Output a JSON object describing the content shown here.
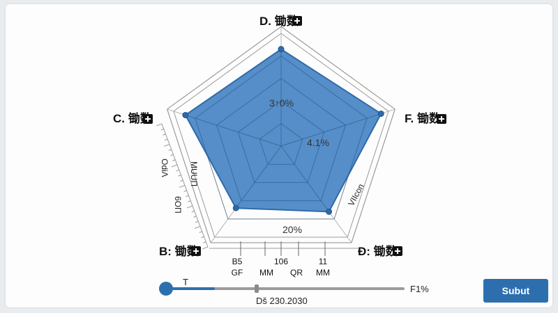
{
  "chart_data": {
    "type": "radar",
    "axes": [
      {
        "label": "D. 锄数"
      },
      {
        "label": "F. 锄数"
      },
      {
        "label": "Đ: 锄数"
      },
      {
        "label": "B: 锄数"
      },
      {
        "label": "C. 锄数"
      }
    ],
    "series": [
      {
        "values": [
          0.86,
          0.93,
          0.72,
          0.68,
          0.89
        ],
        "color": "#3d7ec2"
      }
    ],
    "rings": 5,
    "grid": true,
    "inner_labels": [
      "3↑0%",
      "4.1%",
      "20%"
    ],
    "side_labels": [
      "OdiΛ",
      "MUUΠ",
      "6ΟΠ",
      "VIIcon"
    ],
    "bottom_ticks": [
      {
        "top": "B5",
        "bottom": "GF"
      },
      {
        "top": "",
        "bottom": "MM"
      },
      {
        "top": "106",
        "bottom": ""
      },
      {
        "top": "",
        "bottom": "QR"
      },
      {
        "top": "11",
        "bottom": "MM"
      }
    ]
  },
  "slider": {
    "left_label": "T",
    "right_label": "F1%",
    "value_text": "Dš 230.2030",
    "value": 0.2
  },
  "submit_label": "Subut",
  "colors": {
    "accent": "#2d6fae",
    "fill": "#3d7ec2",
    "grid": "#b5b5b5"
  }
}
